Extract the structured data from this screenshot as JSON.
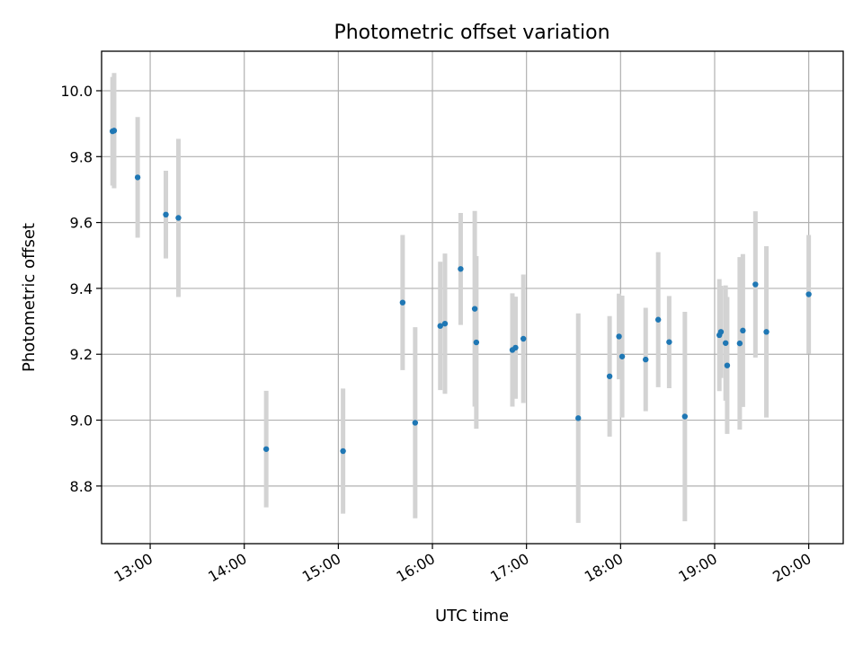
{
  "chart_data": {
    "type": "scatter",
    "title": "Photometric offset variation",
    "xlabel": "UTC time",
    "ylabel": "Photometric offset",
    "x_unit": "UTC time (HH:MM)",
    "xlim": [
      "12:29",
      "20:22"
    ],
    "ylim": [
      8.625,
      10.12
    ],
    "x_ticks": [
      "13:00",
      "14:00",
      "15:00",
      "16:00",
      "17:00",
      "18:00",
      "19:00",
      "20:00"
    ],
    "y_ticks": [
      "8.8",
      "9.0",
      "9.2",
      "9.4",
      "9.6",
      "9.8",
      "10.0"
    ],
    "grid": true,
    "legend": "none",
    "point_color": "#1f77b4",
    "errorbar_color": "#d3d3d3",
    "series": [
      {
        "points": [
          {
            "x": "12:36",
            "y": 9.877,
            "err": 0.165
          },
          {
            "x": "12:37",
            "y": 9.879,
            "err": 0.175
          },
          {
            "x": "12:52",
            "y": 9.737,
            "err": 0.183
          },
          {
            "x": "13:10",
            "y": 9.624,
            "err": 0.133
          },
          {
            "x": "13:18",
            "y": 9.614,
            "err": 0.24
          },
          {
            "x": "14:14",
            "y": 8.912,
            "err": 0.177
          },
          {
            "x": "15:03",
            "y": 8.906,
            "err": 0.19
          },
          {
            "x": "15:41",
            "y": 9.357,
            "err": 0.205
          },
          {
            "x": "15:49",
            "y": 8.992,
            "err": 0.29
          },
          {
            "x": "16:05",
            "y": 9.286,
            "err": 0.195
          },
          {
            "x": "16:08",
            "y": 9.293,
            "err": 0.213
          },
          {
            "x": "16:18",
            "y": 9.459,
            "err": 0.17
          },
          {
            "x": "16:27",
            "y": 9.338,
            "err": 0.297
          },
          {
            "x": "16:28",
            "y": 9.236,
            "err": 0.262
          },
          {
            "x": "16:51",
            "y": 9.213,
            "err": 0.172
          },
          {
            "x": "16:53",
            "y": 9.22,
            "err": 0.155
          },
          {
            "x": "16:58",
            "y": 9.247,
            "err": 0.195
          },
          {
            "x": "17:33",
            "y": 9.006,
            "err": 0.318
          },
          {
            "x": "17:53",
            "y": 9.133,
            "err": 0.183
          },
          {
            "x": "17:59",
            "y": 9.254,
            "err": 0.13
          },
          {
            "x": "18:01",
            "y": 9.193,
            "err": 0.185
          },
          {
            "x": "18:16",
            "y": 9.184,
            "err": 0.157
          },
          {
            "x": "18:24",
            "y": 9.305,
            "err": 0.205
          },
          {
            "x": "18:31",
            "y": 9.237,
            "err": 0.14
          },
          {
            "x": "18:41",
            "y": 9.011,
            "err": 0.318
          },
          {
            "x": "19:03",
            "y": 9.258,
            "err": 0.17
          },
          {
            "x": "19:04",
            "y": 9.268,
            "err": 0.14
          },
          {
            "x": "19:07",
            "y": 9.234,
            "err": 0.175
          },
          {
            "x": "19:08",
            "y": 9.166,
            "err": 0.208
          },
          {
            "x": "19:16",
            "y": 9.233,
            "err": 0.262
          },
          {
            "x": "19:18",
            "y": 9.272,
            "err": 0.232
          },
          {
            "x": "19:26",
            "y": 9.412,
            "err": 0.222
          },
          {
            "x": "19:33",
            "y": 9.268,
            "err": 0.26
          },
          {
            "x": "20:00",
            "y": 9.382,
            "err": 0.18
          }
        ]
      }
    ]
  }
}
